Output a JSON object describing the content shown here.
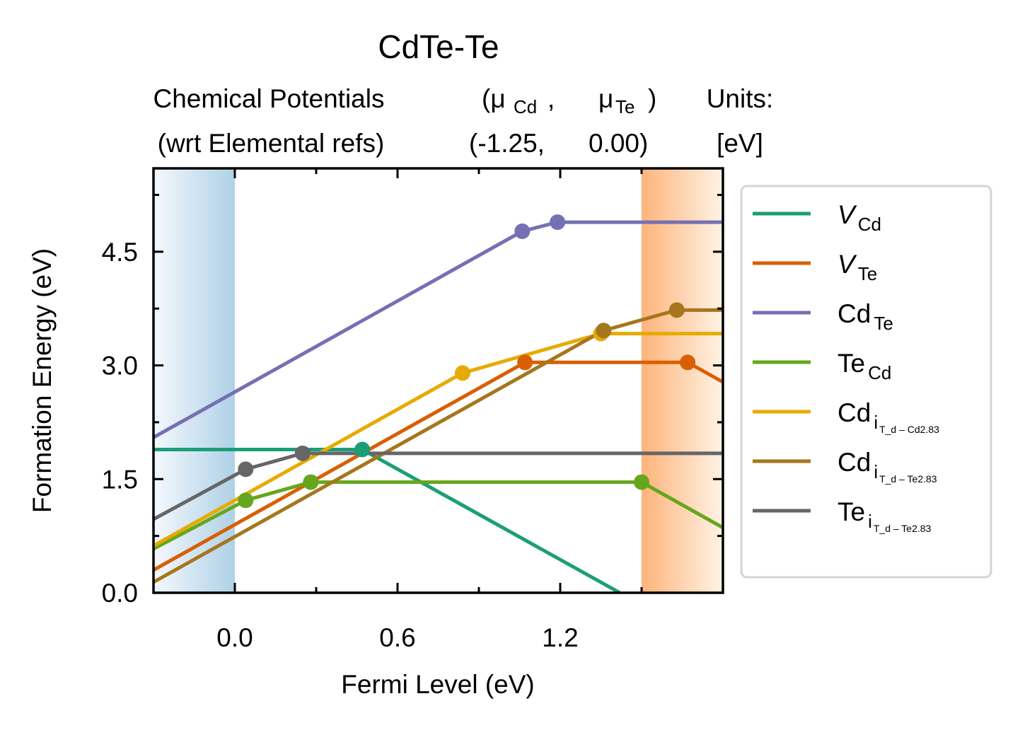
{
  "chart_data": {
    "type": "line",
    "title": "CdTe-Te",
    "header": {
      "row1": [
        "Chemical Potentials",
        "(μ",
        "Cd",
        ",",
        "μ",
        "Te",
        ")",
        "Units:"
      ],
      "row2": [
        "(wrt Elemental refs)",
        "(-1.25,",
        "0.00)",
        "[eV]"
      ]
    },
    "xlabel": "Fermi Level (eV)",
    "ylabel": "Formation Energy (eV)",
    "xlim": [
      -0.3,
      1.8
    ],
    "ylim": [
      0.0,
      5.6
    ],
    "xticks": [
      0.0,
      0.6,
      1.2
    ],
    "xtick_labels": [
      "0.0",
      "0.6",
      "1.2"
    ],
    "yticks": [
      0.0,
      1.5,
      3.0,
      4.5
    ],
    "ytick_labels": [
      "0.0",
      "1.5",
      "3.0",
      "4.5"
    ],
    "shaded_regions": [
      {
        "name": "valence-band",
        "x": [
          -0.3,
          0.0
        ],
        "color": "#b0d0e8"
      },
      {
        "name": "conduction-band",
        "x": [
          1.5,
          1.8
        ],
        "color": "#fcb47a"
      }
    ],
    "series": [
      {
        "legend": "V",
        "legend_sub": "Cd",
        "color": "#1b9e77",
        "x": [
          -0.3,
          0.47,
          1.42
        ],
        "y": [
          1.89,
          1.89,
          0.0
        ],
        "markers": [
          0.47
        ]
      },
      {
        "legend": "V",
        "legend_sub": "Te",
        "color": "#d95f02",
        "x": [
          -0.3,
          1.07,
          1.67,
          1.8
        ],
        "y": [
          0.3,
          3.04,
          3.04,
          2.78
        ],
        "markers": [
          1.07,
          1.67
        ]
      },
      {
        "legend": "Cd",
        "legend_sub": "Te",
        "color": "#7570b3",
        "x": [
          -0.3,
          1.06,
          1.19,
          1.8
        ],
        "y": [
          2.05,
          4.77,
          4.89,
          4.89
        ],
        "markers": [
          1.06,
          1.19
        ]
      },
      {
        "legend": "Te",
        "legend_sub": "Cd",
        "color": "#66a61e",
        "x": [
          -0.3,
          0.04,
          0.28,
          1.5,
          1.8
        ],
        "y": [
          0.58,
          1.22,
          1.46,
          1.46,
          0.86
        ],
        "markers": [
          0.04,
          0.28,
          1.5
        ]
      },
      {
        "legend": "Cd",
        "legend_sub": "i",
        "legend_subsub": "T_d – Cd2.83",
        "color": "#e6ab02",
        "x": [
          -0.3,
          0.84,
          1.35,
          1.8
        ],
        "y": [
          0.62,
          2.9,
          3.42,
          3.42
        ],
        "markers": [
          0.84,
          1.35
        ]
      },
      {
        "legend": "Cd",
        "legend_sub": "i",
        "legend_subsub": "T_d – Te2.83",
        "color": "#a6761d",
        "x": [
          -0.3,
          1.36,
          1.63,
          1.8
        ],
        "y": [
          0.14,
          3.46,
          3.73,
          3.73
        ],
        "markers": [
          1.36,
          1.63
        ]
      },
      {
        "legend": "Te",
        "legend_sub": "i",
        "legend_subsub": "T_d – Te2.83",
        "color": "#666666",
        "x": [
          -0.3,
          0.04,
          0.25,
          1.8
        ],
        "y": [
          0.97,
          1.63,
          1.84,
          1.84
        ],
        "markers": [
          0.04,
          0.25
        ]
      }
    ],
    "legend_placement": "outside-right",
    "grid": false
  }
}
